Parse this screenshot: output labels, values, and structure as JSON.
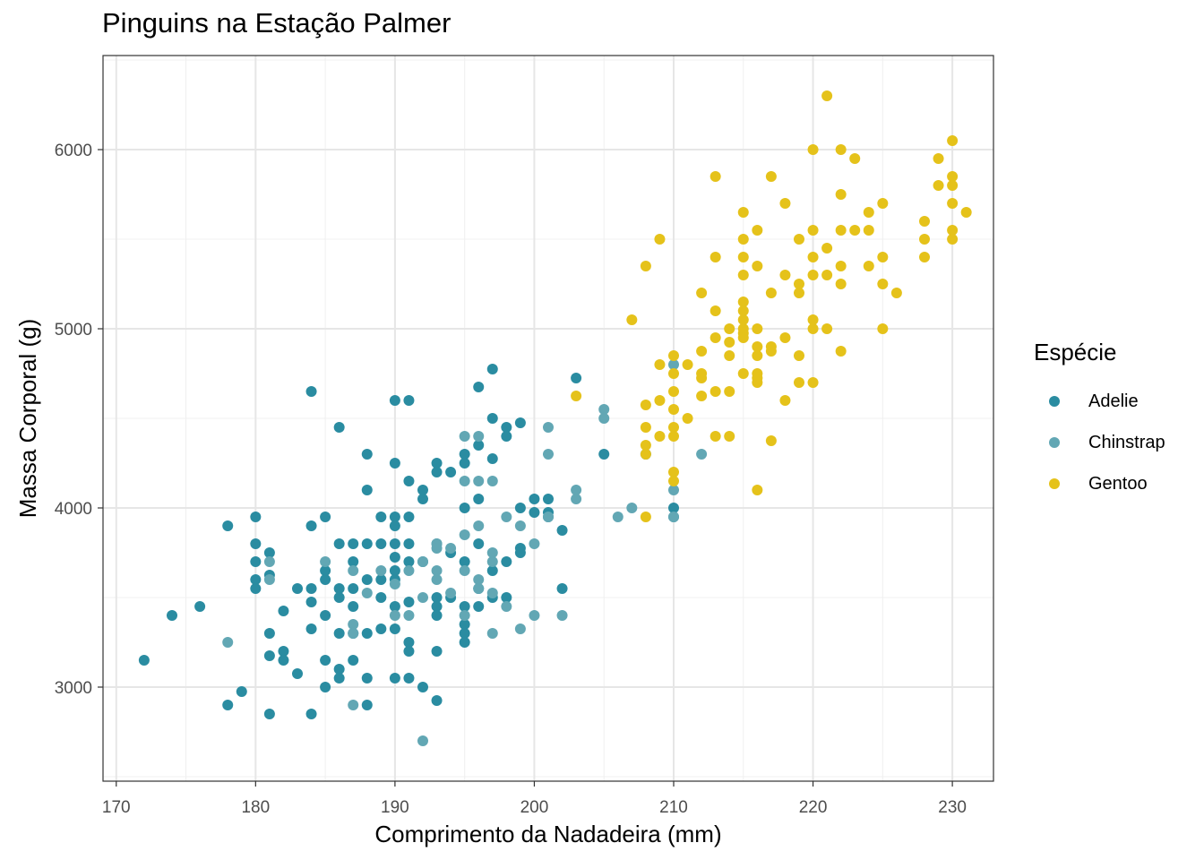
{
  "chart_data": {
    "type": "scatter",
    "title": "Pinguins na Estação Palmer",
    "xlabel": "Comprimento da Nadadeira (mm)",
    "ylabel": "Massa Corporal (g)",
    "xlim": [
      169.05,
      232.95
    ],
    "ylim": [
      2475,
      6525
    ],
    "xticks": [
      170,
      180,
      190,
      200,
      210,
      220,
      230
    ],
    "yticks": [
      3000,
      4000,
      5000,
      6000
    ],
    "grid": true,
    "legend": {
      "title": "Espécie",
      "placement": "right"
    },
    "series": [
      {
        "name": "Adelie",
        "color": "#2a8ca1",
        "points": [
          [
            172,
            3150
          ],
          [
            174,
            3400
          ],
          [
            176,
            3450
          ],
          [
            178,
            3900
          ],
          [
            178,
            2900
          ],
          [
            179,
            2975
          ],
          [
            180,
            3950
          ],
          [
            180,
            3800
          ],
          [
            180,
            3700
          ],
          [
            180,
            3600
          ],
          [
            180,
            3550
          ],
          [
            181,
            3750
          ],
          [
            181,
            3625
          ],
          [
            181,
            3300
          ],
          [
            181,
            3175
          ],
          [
            181,
            2850
          ],
          [
            182,
            3425
          ],
          [
            182,
            3200
          ],
          [
            182,
            3150
          ],
          [
            183,
            3550
          ],
          [
            183,
            3075
          ],
          [
            184,
            4650
          ],
          [
            184,
            3900
          ],
          [
            184,
            3550
          ],
          [
            184,
            3475
          ],
          [
            184,
            3325
          ],
          [
            184,
            2850
          ],
          [
            185,
            3950
          ],
          [
            185,
            3650
          ],
          [
            185,
            3600
          ],
          [
            185,
            3400
          ],
          [
            185,
            3150
          ],
          [
            185,
            3000
          ],
          [
            186,
            4450
          ],
          [
            186,
            3800
          ],
          [
            186,
            3550
          ],
          [
            186,
            3500
          ],
          [
            186,
            3300
          ],
          [
            186,
            3100
          ],
          [
            186,
            3050
          ],
          [
            187,
            3800
          ],
          [
            187,
            3700
          ],
          [
            187,
            3550
          ],
          [
            187,
            3450
          ],
          [
            187,
            3300
          ],
          [
            187,
            3150
          ],
          [
            188,
            4300
          ],
          [
            188,
            4100
          ],
          [
            188,
            3800
          ],
          [
            188,
            3600
          ],
          [
            188,
            3300
          ],
          [
            188,
            3050
          ],
          [
            188,
            2900
          ],
          [
            189,
            3950
          ],
          [
            189,
            3800
          ],
          [
            189,
            3600
          ],
          [
            189,
            3500
          ],
          [
            189,
            3325
          ],
          [
            190,
            4600
          ],
          [
            190,
            4250
          ],
          [
            190,
            3950
          ],
          [
            190,
            3900
          ],
          [
            190,
            3800
          ],
          [
            190,
            3725
          ],
          [
            190,
            3650
          ],
          [
            190,
            3600
          ],
          [
            190,
            3450
          ],
          [
            190,
            3325
          ],
          [
            190,
            3050
          ],
          [
            191,
            4600
          ],
          [
            191,
            4150
          ],
          [
            191,
            3950
          ],
          [
            191,
            3800
          ],
          [
            191,
            3700
          ],
          [
            191,
            3475
          ],
          [
            191,
            3250
          ],
          [
            191,
            3200
          ],
          [
            191,
            3050
          ],
          [
            192,
            4100
          ],
          [
            192,
            4050
          ],
          [
            192,
            3700
          ],
          [
            192,
            3000
          ],
          [
            193,
            4250
          ],
          [
            193,
            4200
          ],
          [
            193,
            3800
          ],
          [
            193,
            3500
          ],
          [
            193,
            3450
          ],
          [
            193,
            3400
          ],
          [
            193,
            3200
          ],
          [
            193,
            2925
          ],
          [
            194,
            4200
          ],
          [
            194,
            3750
          ],
          [
            194,
            3500
          ],
          [
            195,
            4300
          ],
          [
            195,
            4250
          ],
          [
            195,
            4000
          ],
          [
            195,
            3700
          ],
          [
            195,
            3450
          ],
          [
            195,
            3350
          ],
          [
            195,
            3300
          ],
          [
            195,
            3250
          ],
          [
            196,
            4675
          ],
          [
            196,
            4350
          ],
          [
            196,
            4050
          ],
          [
            196,
            3800
          ],
          [
            196,
            3550
          ],
          [
            196,
            3450
          ],
          [
            197,
            4775
          ],
          [
            197,
            4500
          ],
          [
            197,
            4275
          ],
          [
            197,
            3650
          ],
          [
            197,
            3500
          ],
          [
            198,
            4450
          ],
          [
            198,
            4400
          ],
          [
            198,
            3700
          ],
          [
            198,
            3500
          ],
          [
            199,
            4475
          ],
          [
            199,
            4000
          ],
          [
            199,
            3775
          ],
          [
            199,
            3750
          ],
          [
            200,
            4050
          ],
          [
            200,
            3975
          ],
          [
            201,
            4050
          ],
          [
            201,
            3975
          ],
          [
            201,
            3950
          ],
          [
            202,
            3875
          ],
          [
            202,
            3550
          ],
          [
            203,
            4725
          ],
          [
            205,
            4300
          ],
          [
            208,
            4300
          ],
          [
            210,
            4000
          ],
          [
            210,
            3950
          ]
        ]
      },
      {
        "name": "Chinstrap",
        "color": "#62a7b4",
        "points": [
          [
            178,
            3250
          ],
          [
            181,
            3700
          ],
          [
            181,
            3600
          ],
          [
            185,
            3700
          ],
          [
            187,
            3650
          ],
          [
            187,
            3350
          ],
          [
            187,
            3300
          ],
          [
            187,
            2900
          ],
          [
            188,
            3525
          ],
          [
            189,
            3650
          ],
          [
            190,
            3575
          ],
          [
            190,
            3400
          ],
          [
            191,
            3650
          ],
          [
            191,
            3400
          ],
          [
            192,
            3700
          ],
          [
            192,
            3500
          ],
          [
            192,
            2700
          ],
          [
            193,
            3800
          ],
          [
            193,
            3775
          ],
          [
            193,
            3650
          ],
          [
            193,
            3600
          ],
          [
            194,
            3775
          ],
          [
            194,
            3525
          ],
          [
            195,
            4400
          ],
          [
            195,
            4150
          ],
          [
            195,
            3850
          ],
          [
            195,
            3650
          ],
          [
            195,
            3400
          ],
          [
            196,
            4400
          ],
          [
            196,
            4150
          ],
          [
            196,
            3900
          ],
          [
            196,
            3600
          ],
          [
            196,
            3550
          ],
          [
            197,
            4150
          ],
          [
            197,
            3750
          ],
          [
            197,
            3700
          ],
          [
            197,
            3525
          ],
          [
            197,
            3300
          ],
          [
            198,
            3950
          ],
          [
            198,
            3450
          ],
          [
            199,
            3900
          ],
          [
            199,
            3325
          ],
          [
            200,
            3800
          ],
          [
            200,
            3400
          ],
          [
            201,
            4450
          ],
          [
            201,
            4300
          ],
          [
            201,
            3950
          ],
          [
            202,
            3400
          ],
          [
            203,
            4100
          ],
          [
            203,
            4050
          ],
          [
            205,
            4550
          ],
          [
            205,
            4500
          ],
          [
            206,
            3950
          ],
          [
            207,
            4000
          ],
          [
            210,
            4800
          ],
          [
            210,
            4100
          ],
          [
            210,
            3950
          ],
          [
            212,
            4300
          ]
        ]
      },
      {
        "name": "Gentoo",
        "color": "#e5c21a",
        "points": [
          [
            203,
            4625
          ],
          [
            207,
            5050
          ],
          [
            208,
            5350
          ],
          [
            208,
            4575
          ],
          [
            208,
            4450
          ],
          [
            208,
            4350
          ],
          [
            208,
            4300
          ],
          [
            208,
            3950
          ],
          [
            209,
            5500
          ],
          [
            209,
            4800
          ],
          [
            209,
            4600
          ],
          [
            209,
            4400
          ],
          [
            210,
            4850
          ],
          [
            210,
            4750
          ],
          [
            210,
            4650
          ],
          [
            210,
            4550
          ],
          [
            210,
            4450
          ],
          [
            210,
            4400
          ],
          [
            210,
            4200
          ],
          [
            210,
            4150
          ],
          [
            211,
            4800
          ],
          [
            211,
            4500
          ],
          [
            212,
            5200
          ],
          [
            212,
            4875
          ],
          [
            212,
            4750
          ],
          [
            212,
            4725
          ],
          [
            212,
            4625
          ],
          [
            213,
            5850
          ],
          [
            213,
            5400
          ],
          [
            213,
            5100
          ],
          [
            213,
            4950
          ],
          [
            213,
            4650
          ],
          [
            213,
            4400
          ],
          [
            214,
            5000
          ],
          [
            214,
            4925
          ],
          [
            214,
            4850
          ],
          [
            214,
            4650
          ],
          [
            214,
            4400
          ],
          [
            215,
            5650
          ],
          [
            215,
            5500
          ],
          [
            215,
            5400
          ],
          [
            215,
            5300
          ],
          [
            215,
            5150
          ],
          [
            215,
            5100
          ],
          [
            215,
            5050
          ],
          [
            215,
            5000
          ],
          [
            215,
            4975
          ],
          [
            215,
            4950
          ],
          [
            215,
            4750
          ],
          [
            216,
            5550
          ],
          [
            216,
            5350
          ],
          [
            216,
            5000
          ],
          [
            216,
            4900
          ],
          [
            216,
            4850
          ],
          [
            216,
            4750
          ],
          [
            216,
            4725
          ],
          [
            216,
            4700
          ],
          [
            216,
            4100
          ],
          [
            217,
            5850
          ],
          [
            217,
            5200
          ],
          [
            217,
            4900
          ],
          [
            217,
            4875
          ],
          [
            217,
            4375
          ],
          [
            218,
            5700
          ],
          [
            218,
            5300
          ],
          [
            218,
            4950
          ],
          [
            218,
            4600
          ],
          [
            219,
            5500
          ],
          [
            219,
            5250
          ],
          [
            219,
            5200
          ],
          [
            219,
            4850
          ],
          [
            219,
            4700
          ],
          [
            220,
            6000
          ],
          [
            220,
            5550
          ],
          [
            220,
            5400
          ],
          [
            220,
            5300
          ],
          [
            220,
            5050
          ],
          [
            220,
            5000
          ],
          [
            220,
            4700
          ],
          [
            221,
            6300
          ],
          [
            221,
            5450
          ],
          [
            221,
            5300
          ],
          [
            221,
            5000
          ],
          [
            222,
            6000
          ],
          [
            222,
            5750
          ],
          [
            222,
            5550
          ],
          [
            222,
            5350
          ],
          [
            222,
            5250
          ],
          [
            222,
            4875
          ],
          [
            223,
            5950
          ],
          [
            223,
            5550
          ],
          [
            224,
            5650
          ],
          [
            224,
            5550
          ],
          [
            224,
            5350
          ],
          [
            225,
            5700
          ],
          [
            225,
            5400
          ],
          [
            225,
            5250
          ],
          [
            225,
            5000
          ],
          [
            226,
            5200
          ],
          [
            228,
            5600
          ],
          [
            228,
            5500
          ],
          [
            228,
            5400
          ],
          [
            229,
            5950
          ],
          [
            229,
            5800
          ],
          [
            230,
            6050
          ],
          [
            230,
            5850
          ],
          [
            230,
            5800
          ],
          [
            230,
            5700
          ],
          [
            230,
            5550
          ],
          [
            230,
            5500
          ],
          [
            231,
            5650
          ]
        ]
      }
    ]
  }
}
